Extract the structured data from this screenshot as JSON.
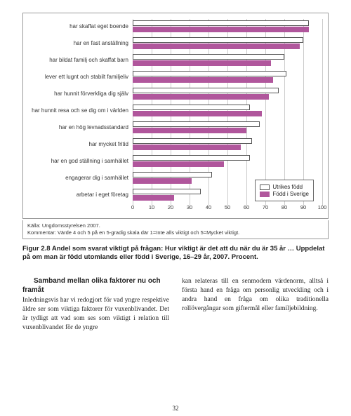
{
  "chart": {
    "type": "bar-horizontal-grouped",
    "categories": [
      "har skaffat eget boende",
      "har en fast anställning",
      "har bildat familj och skaffat barn",
      "lever ett lugnt och stabilt familjeliv",
      "har hunnit förverkliga dig själv",
      "har hunnit resa och se dig om i världen",
      "har en hög levnadsstandard",
      "har mycket fritid",
      "har en god ställning i samhället",
      "engagerar dig i samhället",
      "arbetar i eget företag"
    ],
    "series": [
      {
        "name": "Utrikes född",
        "color": "#ffffff",
        "border": "#555555",
        "values": [
          93,
          90,
          80,
          81,
          77,
          62,
          67,
          63,
          62,
          42,
          36
        ]
      },
      {
        "name": "Född i Sverige",
        "color": "#b0569c",
        "border": "#b0569c",
        "values": [
          93,
          88,
          73,
          74,
          72,
          68,
          60,
          57,
          48,
          31,
          22
        ]
      }
    ],
    "xlim": [
      0,
      100
    ],
    "xtick_step": 10,
    "grid_color": "#cccccc",
    "background": "#ffffff",
    "legend": {
      "items": [
        "Utrikes född",
        "Född i Sverige"
      ]
    }
  },
  "source": {
    "line1": "Källa: Ungdomsstyrelsen 2007.",
    "line2": "Kommentar: Värde 4 och 5 på en 5-gradig skala där 1=Inte alls viktigt och 5=Mycket viktigt."
  },
  "caption": "Figur 2.8 Andel som svarat viktigt på frågan: Hur viktigt är det att du när du är 35 år … Uppdelat på om man är född utomlands eller född i Sverige, 16–29 år, 2007. Procent.",
  "heading": "Samband mellan olika faktorer nu och framåt",
  "body_left": "Inledningsvis har vi redogjort för vad yngre respektive äldre ser som viktiga faktorer för vuxenblivandet. Det är tydligt att vad som ses som viktigt i relation till vuxenblivandet för de yngre",
  "body_right": "kan relateras till en senmodern värdenorm, alltså i första hand en fråga om personlig utveckling och i andra hand en fråga om olika traditionella rollövergångar som giftermål eller familjebildning.",
  "page": "32"
}
